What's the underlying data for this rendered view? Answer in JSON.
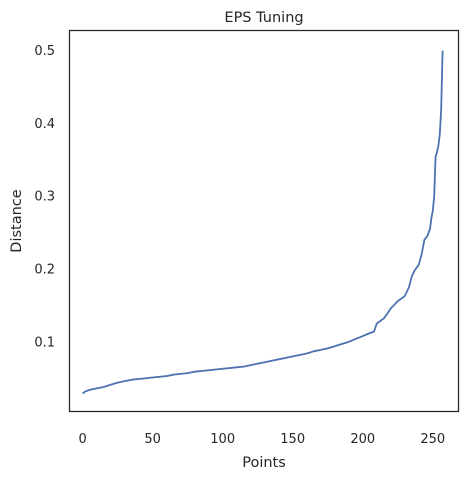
{
  "chart_data": {
    "type": "line",
    "title": "EPS Tuning",
    "xlabel": "Points",
    "ylabel": "Distance",
    "xlim": [
      -9,
      268
    ],
    "ylim": [
      0.005,
      0.527
    ],
    "xticks": [
      0,
      50,
      100,
      150,
      200,
      250
    ],
    "yticks": [
      0.1,
      0.2,
      0.3,
      0.4,
      0.5
    ],
    "grid": false,
    "line_color": "#4c72b0",
    "series": [
      {
        "x": [
          0,
          2,
          5,
          10,
          15,
          20,
          25,
          30,
          35,
          40,
          45,
          50,
          55,
          60,
          65,
          70,
          75,
          80,
          85,
          90,
          95,
          100,
          105,
          110,
          115,
          120,
          125,
          130,
          135,
          140,
          145,
          150,
          155,
          160,
          165,
          170,
          175,
          180,
          185,
          190,
          195,
          200,
          205,
          208,
          210,
          212,
          215,
          218,
          220,
          222,
          225,
          228,
          230,
          233,
          235,
          237,
          240,
          242,
          244,
          246,
          248,
          249,
          250,
          251,
          252,
          253,
          254,
          255,
          256,
          257
        ],
        "y": [
          0.029,
          0.032,
          0.034,
          0.036,
          0.038,
          0.041,
          0.044,
          0.046,
          0.048,
          0.049,
          0.05,
          0.051,
          0.052,
          0.053,
          0.055,
          0.056,
          0.057,
          0.059,
          0.06,
          0.061,
          0.062,
          0.063,
          0.064,
          0.065,
          0.066,
          0.068,
          0.07,
          0.072,
          0.074,
          0.076,
          0.078,
          0.08,
          0.082,
          0.084,
          0.087,
          0.089,
          0.091,
          0.094,
          0.097,
          0.1,
          0.104,
          0.108,
          0.112,
          0.114,
          0.125,
          0.128,
          0.132,
          0.14,
          0.146,
          0.15,
          0.156,
          0.16,
          0.163,
          0.175,
          0.19,
          0.198,
          0.206,
          0.22,
          0.24,
          0.245,
          0.255,
          0.27,
          0.28,
          0.3,
          0.355,
          0.36,
          0.37,
          0.385,
          0.42,
          0.5
        ]
      }
    ]
  }
}
